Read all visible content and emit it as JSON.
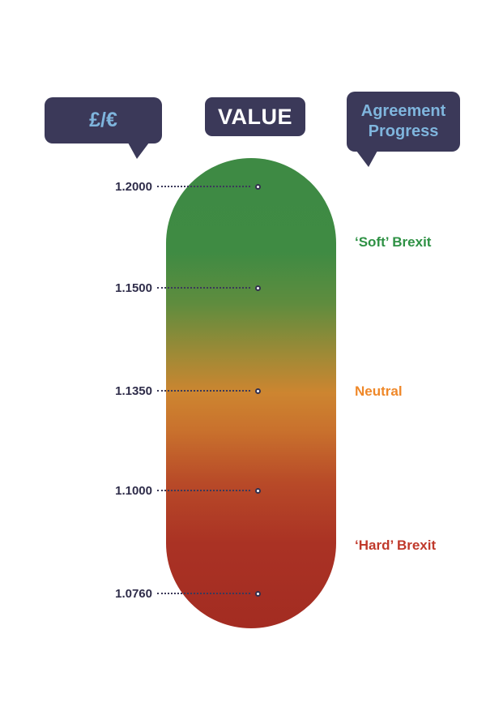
{
  "header": {
    "currency_pair": "£/€",
    "value_title": "VALUE",
    "agreement_line1": "Agreement",
    "agreement_line2": "Progress"
  },
  "ticks": [
    {
      "label": "1.2000",
      "value": 1.2
    },
    {
      "label": "1.1500",
      "value": 1.15
    },
    {
      "label": "1.1350",
      "value": 1.135
    },
    {
      "label": "1.1000",
      "value": 1.1
    },
    {
      "label": "1.0760",
      "value": 1.076
    }
  ],
  "categories": [
    {
      "label": "‘Soft’ Brexit",
      "color": "#2e9144"
    },
    {
      "label": "Neutral",
      "color": "#ef8829"
    },
    {
      "label": "‘Hard’ Brexit",
      "color": "#c0392b"
    }
  ],
  "colors": {
    "bubble_navy": "#3b3959",
    "bubble_text_blue": "#7fb5dd",
    "value_text_white": "#ffffff",
    "tick_text_navy": "#2f2d4a",
    "gauge_green_top": "#3e8a44",
    "gauge_orange_mid": "#cd8530",
    "gauge_red_bottom": "#a32c22",
    "background": "#ffffff"
  },
  "chart_data": {
    "type": "gauge",
    "orientation": "vertical",
    "title": "VALUE",
    "axis_label": "£/€",
    "legend_title": "Agreement Progress",
    "range": [
      1.076,
      1.2
    ],
    "tick_labels": [
      "1.2000",
      "1.1500",
      "1.1350",
      "1.1000",
      "1.0760"
    ],
    "tick_values": [
      1.2,
      1.15,
      1.135,
      1.1,
      1.076
    ],
    "zones": [
      {
        "label": "‘Soft’ Brexit",
        "position": "top",
        "approx_value_range": [
          1.15,
          1.2
        ],
        "color": "#3e8a44"
      },
      {
        "label": "Neutral",
        "position": "middle",
        "approx_value_range": [
          1.135,
          1.135
        ],
        "color": "#cd8530"
      },
      {
        "label": "‘Hard’ Brexit",
        "position": "bottom",
        "approx_value_range": [
          1.076,
          1.1
        ],
        "color": "#a32c22"
      }
    ],
    "gradient": [
      "#3e8a44",
      "#cd8530",
      "#a32c22"
    ],
    "grid": false,
    "legend_position": "right"
  }
}
